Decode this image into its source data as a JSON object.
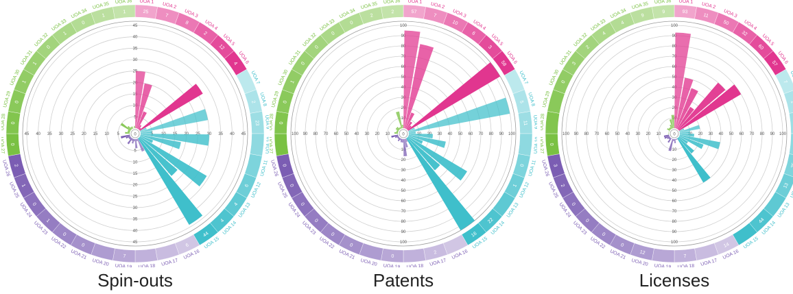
{
  "colors": {
    "group_1_6": "#e1368f",
    "group_7_15": "#3fbfcb",
    "group_16_26": "#7b5db3",
    "group_27_36": "#7ac143",
    "grid": "#cfcfcf",
    "center_text": "#444444"
  },
  "center_label": "0",
  "chart_data": [
    {
      "type": "radial-bar",
      "title": "Spin-outs",
      "radial_max": 45,
      "ticks": [
        5,
        10,
        15,
        20,
        25,
        30,
        35,
        40,
        45
      ],
      "categories": [
        "UOA 1",
        "UOA 2",
        "UOA 3",
        "UOA 4",
        "UOA 5",
        "UOA 6",
        "UOA 7",
        "UOA 8",
        "UOA 9",
        "UOA 10",
        "UOA 11",
        "UOA 12",
        "UOA 13",
        "UOA 14",
        "UOA 15",
        "UOA 16",
        "UOA 17",
        "UOA 18",
        "UOA 19",
        "UOA 20",
        "UOA 21",
        "UOA 22",
        "UOA 23",
        "UOA 24",
        "UOA 25",
        "UOA 26",
        "UOA 27",
        "UOA 28",
        "UOA 29",
        "UOA 30",
        "UOA 31",
        "UOA 32",
        "UOA 33",
        "UOA 34",
        "UOA 35",
        "UOA 36"
      ],
      "values": [
        25,
        20,
        8,
        2,
        1,
        32,
        3,
        30,
        5,
        30,
        18,
        6,
        34,
        22,
        44,
        6,
        1,
        4,
        1,
        2,
        1,
        3,
        1,
        1,
        2,
        4,
        0,
        2,
        1,
        1,
        5,
        2,
        1,
        1,
        0,
        1
      ],
      "ring_values": [
        "25",
        "7",
        "8",
        "2",
        "12",
        "4",
        "",
        "2",
        "23",
        "",
        "",
        "6",
        "4",
        "4",
        "44",
        "6",
        "",
        "",
        "7",
        "",
        "0",
        "0",
        "1",
        "0",
        "1",
        "2",
        "0",
        "0",
        "0",
        "1",
        "1",
        "0",
        "1",
        "0",
        "1",
        "1"
      ]
    },
    {
      "type": "radial-bar",
      "title": "Patents",
      "radial_max": 60,
      "ticks": [
        10,
        20,
        30,
        40,
        50,
        60,
        70,
        80,
        90,
        100
      ],
      "categories": [
        "UOA 1",
        "UOA 2",
        "UOA 3",
        "UOA 4",
        "UOA 5",
        "UOA 6",
        "UOA 7",
        "UOA 8",
        "UOA 9",
        "UOA 10",
        "UOA 11",
        "UOA 12",
        "UOA 13",
        "UOA 14",
        "UOA 15",
        "UOA 16",
        "UOA 17",
        "UOA 18",
        "UOA 19",
        "UOA 20",
        "UOA 21",
        "UOA 22",
        "UOA 23",
        "UOA 24",
        "UOA 25",
        "UOA 26",
        "UOA 27",
        "UOA 28",
        "UOA 29",
        "UOA 30",
        "UOA 31",
        "UOA 32",
        "UOA 33",
        "UOA 34",
        "UOA 35",
        "UOA 36"
      ],
      "values": [
        57,
        50,
        10,
        5,
        3,
        90,
        4,
        60,
        4,
        14,
        22,
        9,
        40,
        25,
        65,
        2,
        5,
        10,
        2,
        2,
        1,
        2,
        1,
        1,
        2,
        4,
        0,
        2,
        1,
        1,
        2,
        2,
        1,
        1,
        10,
        2
      ],
      "ring_values": [
        "57",
        "7",
        "10",
        "6",
        "3",
        "58",
        "",
        "5",
        "11",
        "",
        "0",
        "1",
        "",
        "22",
        "16",
        "",
        "2",
        "",
        "0",
        "",
        "0",
        "0",
        "0",
        "0",
        "0",
        "0",
        "",
        "0",
        "0",
        "1",
        "0",
        "0",
        "0",
        "0",
        "2",
        "2"
      ]
    },
    {
      "type": "radial-bar",
      "title": "Licenses",
      "radial_max": 100,
      "ticks": [
        10,
        20,
        30,
        40,
        50,
        60,
        70,
        80,
        90,
        100
      ],
      "categories": [
        "UOA 1",
        "UOA 2",
        "UOA 3",
        "UOA 4",
        "UOA 5",
        "UOA 6",
        "UOA 7",
        "UOA 8",
        "UOA 9",
        "UOA 10",
        "UOA 11",
        "UOA 12",
        "UOA 13",
        "UOA 14",
        "UOA 15",
        "UOA 16",
        "UOA 17",
        "UOA 18",
        "UOA 19",
        "UOA 20",
        "UOA 21",
        "UOA 22",
        "UOA 23",
        "UOA 24",
        "UOA 25",
        "UOA 26",
        "UOA 27",
        "UOA 28",
        "UOA 29",
        "UOA 30",
        "UOA 31",
        "UOA 32",
        "UOA 33",
        "UOA 34",
        "UOA 35",
        "UOA 36"
      ],
      "values": [
        93,
        50,
        42,
        25,
        60,
        70,
        5,
        20,
        10,
        14,
        40,
        25,
        10,
        20,
        50,
        1,
        1,
        4,
        2,
        12,
        0,
        5,
        2,
        3,
        5,
        5,
        0,
        0,
        0,
        0,
        3,
        2,
        2,
        4,
        9,
        13
      ],
      "ring_values": [
        "93",
        "11",
        "50",
        "32",
        "60",
        "57",
        "7",
        "1",
        "",
        "",
        "25",
        "13",
        "",
        "44",
        "",
        "14",
        "",
        "7",
        "",
        "12",
        "0",
        "0",
        "0",
        "0",
        "2",
        "3",
        "0",
        "",
        "",
        "0",
        "3",
        "2",
        "4",
        "4",
        "9",
        "9"
      ]
    }
  ]
}
